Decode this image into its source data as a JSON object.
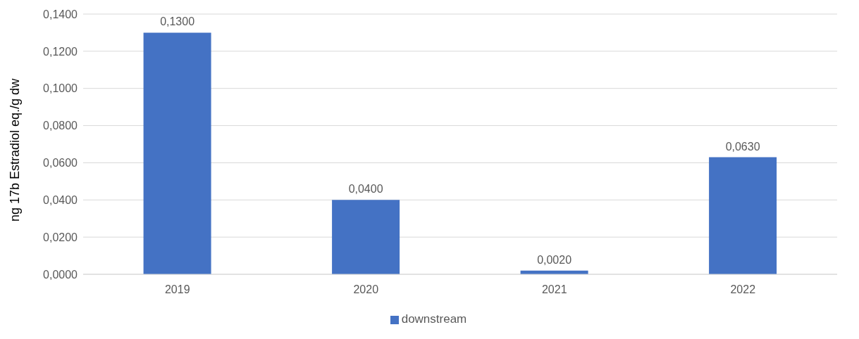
{
  "chart_data": {
    "type": "bar",
    "ylabel": "ng 17b Estradiol eq./g dw",
    "categories": [
      "2019",
      "2020",
      "2021",
      "2022"
    ],
    "series": [
      {
        "name": "downstream",
        "color": "#4472c4",
        "values": [
          0.13,
          0.04,
          0.002,
          0.063
        ],
        "value_labels": [
          "0,1300",
          "0,0400",
          "0,0020",
          "0,0630"
        ]
      }
    ],
    "ylim": [
      0,
      0.14
    ],
    "yticks": [
      {
        "value": 0,
        "label": "0,0000"
      },
      {
        "value": 0.02,
        "label": "0,0200"
      },
      {
        "value": 0.04,
        "label": "0,0400"
      },
      {
        "value": 0.06,
        "label": "0,0600"
      },
      {
        "value": 0.08,
        "label": "0,0800"
      },
      {
        "value": 0.1,
        "label": "0,1000"
      },
      {
        "value": 0.12,
        "label": "0,1200"
      },
      {
        "value": 0.14,
        "label": "0,1400"
      }
    ],
    "grid": "y",
    "legend": "bottom"
  }
}
